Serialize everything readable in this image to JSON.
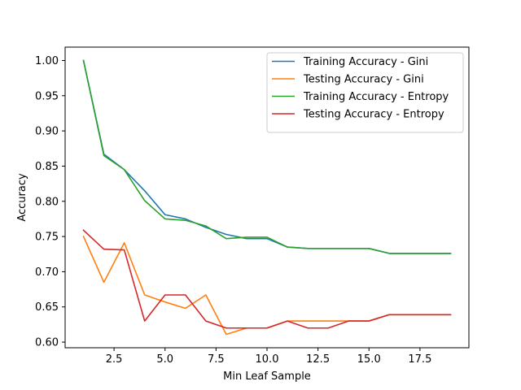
{
  "chart_data": {
    "type": "line",
    "title": "",
    "xlabel": "Min Leaf Sample",
    "ylabel": "Accuracy",
    "xlim": [
      0.1,
      19.9
    ],
    "ylim": [
      0.592,
      1.019
    ],
    "xticks": [
      2.5,
      5.0,
      7.5,
      10.0,
      12.5,
      15.0,
      17.5
    ],
    "xtick_labels": [
      "2.5",
      "5.0",
      "7.5",
      "10.0",
      "12.5",
      "15.0",
      "17.5"
    ],
    "yticks": [
      0.6,
      0.65,
      0.7,
      0.75,
      0.8,
      0.85,
      0.9,
      0.95,
      1.0
    ],
    "ytick_labels": [
      "0.60",
      "0.65",
      "0.70",
      "0.75",
      "0.80",
      "0.85",
      "0.90",
      "0.95",
      "1.00"
    ],
    "grid": false,
    "legend_position": "top-right",
    "x": [
      1,
      2,
      3,
      4,
      5,
      6,
      7,
      8,
      9,
      10,
      11,
      12,
      13,
      14,
      15,
      16,
      17,
      18,
      19
    ],
    "series": [
      {
        "name": "Training Accuracy - Gini",
        "color": "#1f77b4",
        "values": [
          1.0,
          0.867,
          0.845,
          0.815,
          0.781,
          0.775,
          0.763,
          0.753,
          0.747,
          0.747,
          0.735,
          0.733,
          0.733,
          0.733,
          0.733,
          0.726,
          0.726,
          0.726,
          0.726
        ]
      },
      {
        "name": "Testing Accuracy - Gini",
        "color": "#ff7f0e",
        "values": [
          0.75,
          0.685,
          0.741,
          0.667,
          0.657,
          0.648,
          0.667,
          0.611,
          0.62,
          0.62,
          0.63,
          0.63,
          0.63,
          0.63,
          0.63,
          0.639,
          0.639,
          0.639,
          0.639
        ]
      },
      {
        "name": "Training Accuracy - Entropy",
        "color": "#2ca02c",
        "values": [
          1.0,
          0.865,
          0.845,
          0.801,
          0.775,
          0.773,
          0.765,
          0.747,
          0.749,
          0.749,
          0.735,
          0.733,
          0.733,
          0.733,
          0.733,
          0.726,
          0.726,
          0.726,
          0.726
        ]
      },
      {
        "name": "Testing Accuracy - Entropy",
        "color": "#d62728",
        "values": [
          0.759,
          0.732,
          0.731,
          0.63,
          0.667,
          0.667,
          0.63,
          0.62,
          0.62,
          0.62,
          0.63,
          0.62,
          0.62,
          0.63,
          0.63,
          0.639,
          0.639,
          0.639,
          0.639
        ]
      }
    ]
  }
}
